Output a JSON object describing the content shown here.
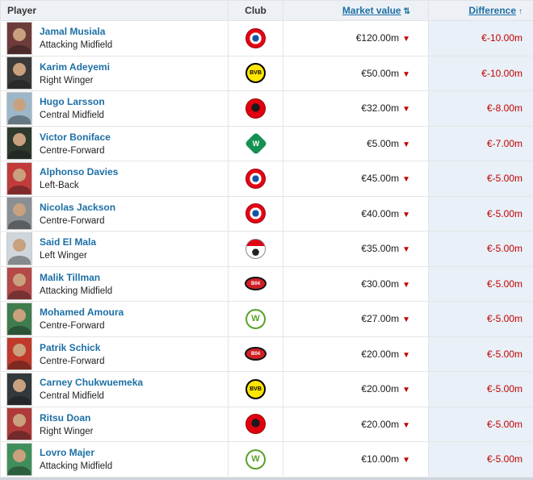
{
  "header": {
    "player": "Player",
    "club": "Club",
    "market_value": "Market value",
    "difference": "Difference"
  },
  "icons": {
    "value_down_arrow": "▼",
    "sort_both_arrow": "⇅",
    "sort_ascending_arrow": "↑"
  },
  "colors": {
    "link_blue": "#1d6fa5",
    "negative_red": "#c00000",
    "difference_column_bg": "#e9f0f7",
    "header_bg": "#edf1f5"
  },
  "rows": [
    {
      "name": "Jamal Musiala",
      "position": "Attacking Midfield",
      "club": "Bayern Munich",
      "market_value": "€120.00m",
      "value_trend": "down",
      "difference": "€-10.00m",
      "photo_bg": "#6e3b3b"
    },
    {
      "name": "Karim Adeyemi",
      "position": "Right Winger",
      "club": "Borussia Dortmund",
      "market_value": "€50.00m",
      "value_trend": "down",
      "difference": "€-10.00m",
      "photo_bg": "#3a3a3a"
    },
    {
      "name": "Hugo Larsson",
      "position": "Central Midfield",
      "club": "Eintracht Frankfurt",
      "market_value": "€32.00m",
      "value_trend": "down",
      "difference": "€-8.00m",
      "photo_bg": "#9db7c9"
    },
    {
      "name": "Victor Boniface",
      "position": "Centre-Forward",
      "club": "Werder Bremen",
      "market_value": "€5.00m",
      "value_trend": "down",
      "difference": "€-7.00m",
      "photo_bg": "#2f3a2f"
    },
    {
      "name": "Alphonso Davies",
      "position": "Left-Back",
      "club": "Bayern Munich",
      "market_value": "€45.00m",
      "value_trend": "down",
      "difference": "€-5.00m",
      "photo_bg": "#c23b3b"
    },
    {
      "name": "Nicolas Jackson",
      "position": "Centre-Forward",
      "club": "Bayern Munich",
      "market_value": "€40.00m",
      "value_trend": "down",
      "difference": "€-5.00m",
      "photo_bg": "#8a8f94"
    },
    {
      "name": "Said El Mala",
      "position": "Left Winger",
      "club": "1. FC Köln",
      "market_value": "€35.00m",
      "value_trend": "down",
      "difference": "€-5.00m",
      "photo_bg": "#cfd6dc"
    },
    {
      "name": "Malik Tillman",
      "position": "Attacking Midfield",
      "club": "Bayer Leverkusen",
      "market_value": "€30.00m",
      "value_trend": "down",
      "difference": "€-5.00m",
      "photo_bg": "#b54848"
    },
    {
      "name": "Mohamed Amoura",
      "position": "Centre-Forward",
      "club": "VfL Wolfsburg",
      "market_value": "€27.00m",
      "value_trend": "down",
      "difference": "€-5.00m",
      "photo_bg": "#3f7d4e"
    },
    {
      "name": "Patrik Schick",
      "position": "Centre-Forward",
      "club": "Bayer Leverkusen",
      "market_value": "€20.00m",
      "value_trend": "down",
      "difference": "€-5.00m",
      "photo_bg": "#c0392b"
    },
    {
      "name": "Carney Chukwuemeka",
      "position": "Central Midfield",
      "club": "Borussia Dortmund",
      "market_value": "€20.00m",
      "value_trend": "down",
      "difference": "€-5.00m",
      "photo_bg": "#33383d"
    },
    {
      "name": "Ritsu Doan",
      "position": "Right Winger",
      "club": "Eintracht Frankfurt",
      "market_value": "€20.00m",
      "value_trend": "down",
      "difference": "€-5.00m",
      "photo_bg": "#b03a3a"
    },
    {
      "name": "Lovro Majer",
      "position": "Attacking Midfield",
      "club": "VfL Wolfsburg",
      "market_value": "€10.00m",
      "value_trend": "down",
      "difference": "€-5.00m",
      "photo_bg": "#3f8f5a"
    }
  ]
}
